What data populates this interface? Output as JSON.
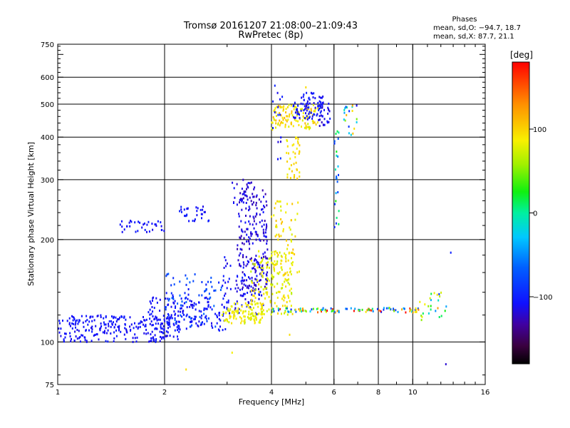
{
  "chart_data": {
    "type": "scatter",
    "title": "Tromsø 20161207 21:08:00–21:09:43",
    "subtitle": "RwPretec (8p)",
    "xlabel": "Frequency [MHz]",
    "ylabel": "Stationary phase Virtual Height [km]",
    "x_scale": "log",
    "y_scale": "log",
    "xlim": [
      1,
      16
    ],
    "ylim": [
      75,
      750
    ],
    "x_ticks": [
      1,
      2,
      4,
      6,
      8,
      10,
      16
    ],
    "x_tick_labels": [
      "1",
      "2",
      "4",
      "6",
      "8",
      "10",
      "16"
    ],
    "x_grid": [
      1,
      2,
      4,
      6,
      8,
      10
    ],
    "y_ticks": [
      75,
      100,
      200,
      300,
      400,
      500,
      600,
      750
    ],
    "y_tick_labels": [
      "75",
      "100",
      "200",
      "300",
      "400",
      "500",
      "600",
      "750"
    ],
    "y_grid": [
      100,
      200,
      300,
      400,
      500,
      600
    ],
    "grid": true,
    "legend_info": {
      "heading": "Phases",
      "line_o": "mean, sd,O: −94.7, 18.7",
      "line_x": "mean, sd,X:  87.7, 21.1"
    },
    "colorbar": {
      "label": "[deg]",
      "range": [
        -180,
        180
      ],
      "ticks": [
        100,
        0,
        -100
      ],
      "tick_labels": [
        "100",
        "0",
        "−100"
      ]
    },
    "clusters": [
      {
        "x": [
          1.0,
          2.2
        ],
        "y": [
          100,
          120
        ],
        "n": 260,
        "phase": [
          -115,
          -100
        ]
      },
      {
        "x": [
          1.8,
          3.0
        ],
        "y": [
          108,
          135
        ],
        "n": 150,
        "phase": [
          -115,
          -100
        ]
      },
      {
        "x": [
          2.0,
          3.0
        ],
        "y": [
          110,
          160
        ],
        "n": 80,
        "phase": [
          -110,
          -60
        ]
      },
      {
        "x": [
          2.9,
          3.8
        ],
        "y": [
          120,
          180
        ],
        "n": 100,
        "phase": [
          -120,
          -100
        ]
      },
      {
        "x": [
          3.2,
          3.9
        ],
        "y": [
          140,
          280
        ],
        "n": 190,
        "phase": [
          -130,
          -105
        ]
      },
      {
        "x": [
          3.1,
          3.6
        ],
        "y": [
          255,
          300
        ],
        "n": 30,
        "phase": [
          -130,
          -105
        ]
      },
      {
        "x": [
          1.5,
          2.0
        ],
        "y": [
          210,
          228
        ],
        "n": 35,
        "phase": [
          -115,
          -100
        ]
      },
      {
        "x": [
          2.2,
          2.7
        ],
        "y": [
          225,
          250
        ],
        "n": 30,
        "phase": [
          -115,
          -95
        ]
      },
      {
        "x": [
          2.9,
          3.8
        ],
        "y": [
          113,
          130
        ],
        "n": 110,
        "phase": [
          70,
          95
        ]
      },
      {
        "x": [
          3.5,
          4.6
        ],
        "y": [
          120,
          185
        ],
        "n": 160,
        "phase": [
          65,
          100
        ]
      },
      {
        "x": [
          4.0,
          4.8
        ],
        "y": [
          150,
          260
        ],
        "n": 70,
        "phase": [
          75,
          110
        ]
      },
      {
        "x": [
          4.4,
          4.8
        ],
        "y": [
          300,
          400
        ],
        "n": 40,
        "phase": [
          80,
          105
        ]
      },
      {
        "x": [
          4.0,
          5.4
        ],
        "y": [
          420,
          500
        ],
        "n": 120,
        "phase": [
          70,
          115
        ]
      },
      {
        "x": [
          4.6,
          5.6
        ],
        "y": [
          450,
          540
        ],
        "n": 80,
        "phase": [
          -120,
          -90
        ]
      },
      {
        "x": [
          5.4,
          5.9
        ],
        "y": [
          430,
          520
        ],
        "n": 30,
        "phase": [
          -125,
          -100
        ]
      },
      {
        "x": [
          4.0,
          4.3
        ],
        "y": [
          320,
          600
        ],
        "n": 15,
        "phase": [
          -120,
          -90
        ]
      },
      {
        "x": [
          4.0,
          10.4
        ],
        "y": [
          122,
          126
        ],
        "n": 110,
        "phase": [
          -100,
          180
        ]
      },
      {
        "x": [
          6.0,
          6.2
        ],
        "y": [
          200,
          420
        ],
        "n": 25,
        "phase": [
          -100,
          40
        ]
      },
      {
        "x": [
          6.4,
          7.0
        ],
        "y": [
          405,
          510
        ],
        "n": 20,
        "phase": [
          -120,
          120
        ]
      },
      {
        "x": [
          10.4,
          12.5
        ],
        "y": [
          115,
          140
        ],
        "n": 25,
        "phase": [
          -110,
          150
        ]
      }
    ],
    "outliers": [
      {
        "x": 3.1,
        "y": 93,
        "phase": 85
      },
      {
        "x": 2.3,
        "y": 83,
        "phase": 95
      },
      {
        "x": 4.5,
        "y": 105,
        "phase": 95
      },
      {
        "x": 12.8,
        "y": 183,
        "phase": -100
      },
      {
        "x": 12.4,
        "y": 86,
        "phase": -120
      },
      {
        "x": 5.0,
        "y": 560,
        "phase": 95
      }
    ]
  }
}
